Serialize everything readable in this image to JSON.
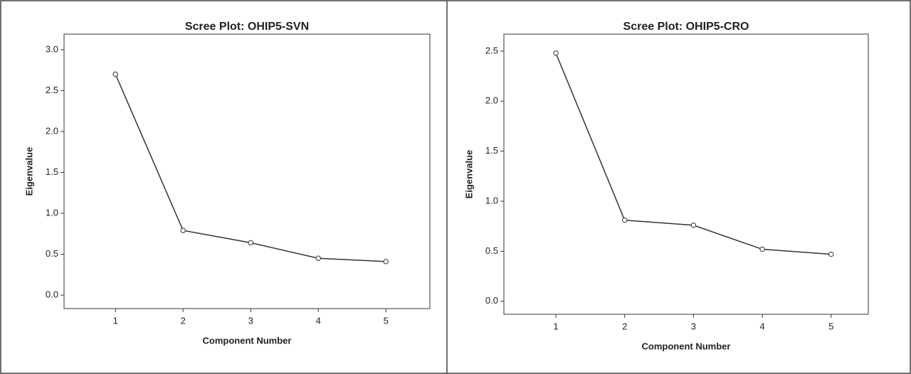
{
  "chart_data": [
    {
      "type": "line",
      "title": "Scree Plot: OHIP5-SVN",
      "x_label": "Component Number",
      "y_label": "Eigenvalue",
      "x": [
        1,
        2,
        3,
        4,
        5
      ],
      "values": [
        2.7,
        0.79,
        0.64,
        0.45,
        0.41
      ],
      "color": "#333333",
      "xlim": [
        0.24,
        5.65
      ],
      "xticks": [
        1,
        2,
        3,
        4,
        5
      ],
      "ylim": [
        -0.165,
        3.19
      ],
      "yticks": [
        {
          "value": 0,
          "label": "0.0"
        },
        0.5,
        {
          "value": 1,
          "label": "1.0"
        },
        1.5,
        {
          "value": 2,
          "label": "2.0"
        },
        2.5,
        {
          "value": 3,
          "label": "3.0"
        }
      ]
    },
    {
      "type": "line",
      "title": "Scree Plot: OHIP5-CRO",
      "x_label": "Component Number",
      "y_label": "Eigenvalue",
      "x": [
        1,
        2,
        3,
        4,
        5
      ],
      "values": [
        2.48,
        0.81,
        0.76,
        0.52,
        0.47
      ],
      "color": "#333333",
      "xlim": [
        0.245,
        5.54
      ],
      "xticks": [
        1,
        2,
        3,
        4,
        5
      ],
      "ylim": [
        -0.13,
        2.67
      ],
      "yticks": [
        {
          "value": 0,
          "label": "0.0"
        },
        0.5,
        {
          "value": 1,
          "label": "1.0"
        },
        1.5,
        {
          "value": 2,
          "label": "2.0"
        },
        2.5
      ]
    }
  ]
}
